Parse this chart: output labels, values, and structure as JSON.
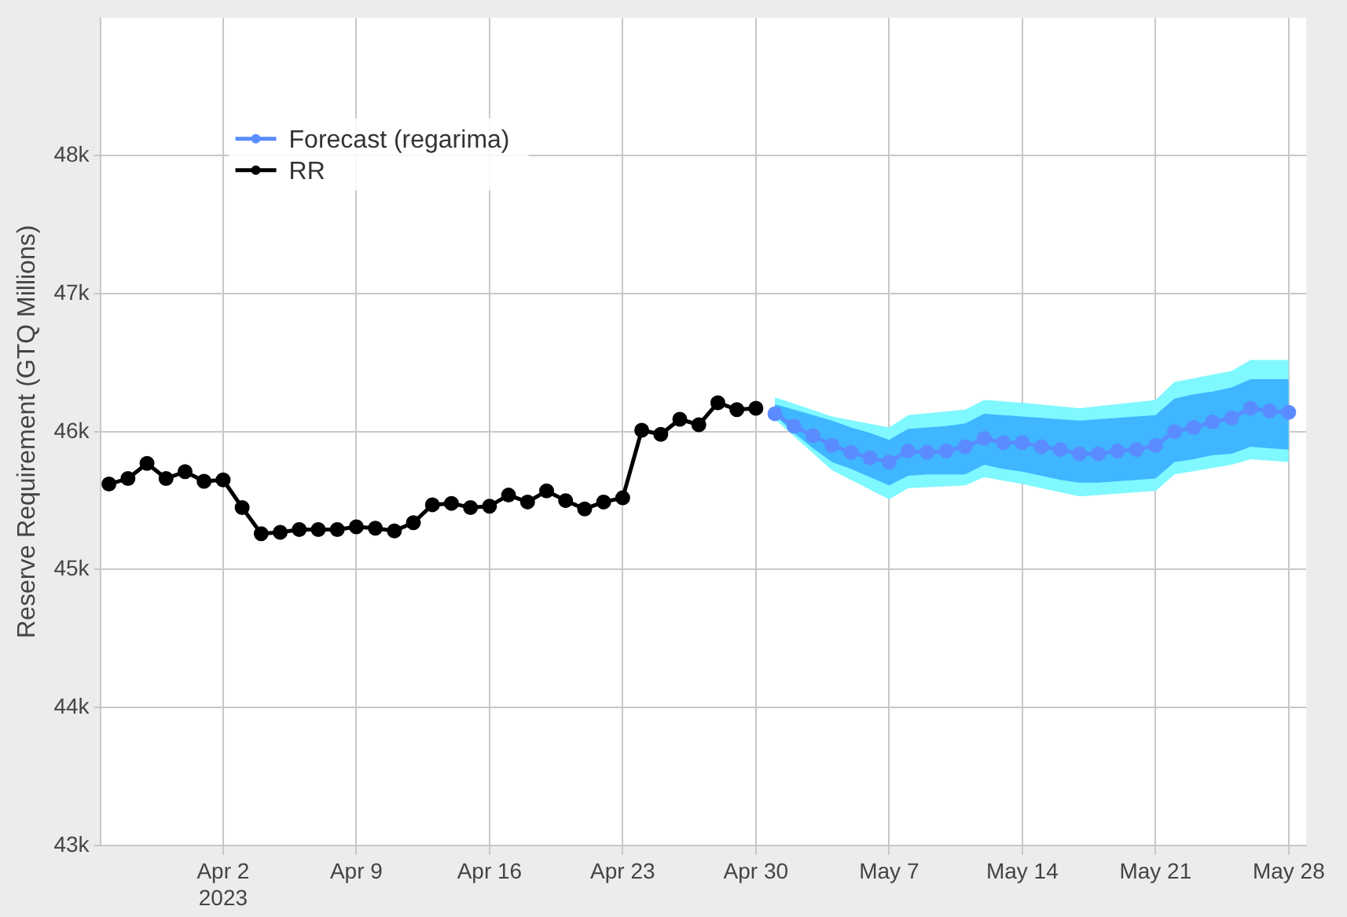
{
  "chart_data": {
    "type": "line",
    "ylabel": "Reserve Requirement (GTQ Millions)",
    "xlim": [
      "2023-03-26T13:00",
      "2023-05-28T22:00"
    ],
    "xticks": [
      {
        "value": "2023-04-02",
        "label": "Apr 2\n2023"
      },
      {
        "value": "2023-04-09",
        "label": "Apr 9"
      },
      {
        "value": "2023-04-16",
        "label": "Apr 16"
      },
      {
        "value": "2023-04-23",
        "label": "Apr 23"
      },
      {
        "value": "2023-04-30",
        "label": "Apr 30"
      },
      {
        "value": "2023-05-07",
        "label": "May 7"
      },
      {
        "value": "2023-05-14",
        "label": "May 14"
      },
      {
        "value": "2023-05-21",
        "label": "May 21"
      },
      {
        "value": "2023-05-28",
        "label": "May 28"
      }
    ],
    "ylim": [
      43000,
      49000
    ],
    "yticks": [
      {
        "value": 43000,
        "label": "43k"
      },
      {
        "value": 44000,
        "label": "44k"
      },
      {
        "value": 45000,
        "label": "45k"
      },
      {
        "value": 46000,
        "label": "46k"
      },
      {
        "value": 47000,
        "label": "47k"
      },
      {
        "value": 48000,
        "label": "48k"
      }
    ],
    "grid": true,
    "legend": "top left",
    "marker": "circle",
    "series": [
      {
        "color": "#7ff8ff",
        "x": [
          "2023-05-01",
          "2023-05-04",
          "2023-05-07",
          "2023-05-08",
          "2023-05-11",
          "2023-05-12",
          "2023-05-14",
          "2023-05-17",
          "2023-05-21",
          "2023-05-22",
          "2023-05-25",
          "2023-05-26",
          "2023-05-28"
        ],
        "values": [
          null,
          null,
          null,
          null,
          null,
          null,
          null,
          null,
          null,
          null,
          null,
          null,
          null
        ],
        "upper": [
          46250,
          46110,
          46030,
          46120,
          46160,
          46230,
          46210,
          46170,
          46230,
          46360,
          46440,
          46520,
          46520
        ],
        "lower": [
          46090,
          45720,
          45510,
          45590,
          45610,
          45670,
          45620,
          45530,
          45570,
          45690,
          45760,
          45800,
          45780
        ]
      },
      {
        "name": "Forecast (regarima)",
        "color": "#5a8cff",
        "x": [
          "2023-05-01",
          "2023-05-02",
          "2023-05-03",
          "2023-05-04",
          "2023-05-05",
          "2023-05-06",
          "2023-05-07",
          "2023-05-08",
          "2023-05-09",
          "2023-05-10",
          "2023-05-11",
          "2023-05-12",
          "2023-05-13",
          "2023-05-14",
          "2023-05-15",
          "2023-05-16",
          "2023-05-17",
          "2023-05-18",
          "2023-05-19",
          "2023-05-20",
          "2023-05-21",
          "2023-05-22",
          "2023-05-23",
          "2023-05-24",
          "2023-05-25",
          "2023-05-26",
          "2023-05-27",
          "2023-05-28"
        ],
        "values": [
          46130,
          46040,
          45970,
          45900,
          45850,
          45810,
          45780,
          45860,
          45850,
          45860,
          45890,
          45950,
          45920,
          45920,
          45890,
          45870,
          45840,
          45840,
          45860,
          45870,
          45900,
          46000,
          46030,
          46070,
          46100,
          46170,
          46150,
          46140
        ],
        "lower": [
          46120,
          45990,
          45880,
          45780,
          45730,
          45670,
          45610,
          45680,
          45690,
          45690,
          45690,
          45760,
          45730,
          45710,
          45680,
          45650,
          45630,
          45630,
          45640,
          45650,
          45660,
          45780,
          45800,
          45830,
          45840,
          45890,
          45880,
          45870
        ],
        "upper": [
          46200,
          46160,
          46120,
          46080,
          46030,
          45990,
          45940,
          46020,
          46030,
          46040,
          46060,
          46130,
          46120,
          46110,
          46100,
          46090,
          46080,
          46090,
          46100,
          46110,
          46120,
          46240,
          46270,
          46290,
          46320,
          46380,
          46380,
          46380
        ]
      },
      {
        "name": "RR",
        "color": "#000000",
        "x": [
          "2023-03-27",
          "2023-03-28",
          "2023-03-29",
          "2023-03-30",
          "2023-03-31",
          "2023-04-01",
          "2023-04-02",
          "2023-04-03",
          "2023-04-04",
          "2023-04-05",
          "2023-04-06",
          "2023-04-07",
          "2023-04-08",
          "2023-04-09",
          "2023-04-10",
          "2023-04-11",
          "2023-04-12",
          "2023-04-13",
          "2023-04-14",
          "2023-04-15",
          "2023-04-16",
          "2023-04-17",
          "2023-04-18",
          "2023-04-19",
          "2023-04-20",
          "2023-04-21",
          "2023-04-22",
          "2023-04-23",
          "2023-04-24",
          "2023-04-25",
          "2023-04-26",
          "2023-04-27",
          "2023-04-28",
          "2023-04-29",
          "2023-04-30"
        ],
        "values": [
          45620,
          45660,
          45770,
          45660,
          45710,
          45640,
          45650,
          45450,
          45260,
          45270,
          45290,
          45290,
          45290,
          45310,
          45300,
          45280,
          45340,
          45470,
          45480,
          45450,
          45460,
          45540,
          45490,
          45570,
          45500,
          45440,
          45490,
          45520,
          46010,
          45980,
          46090,
          46050,
          46210,
          46160,
          46170
        ]
      }
    ]
  }
}
